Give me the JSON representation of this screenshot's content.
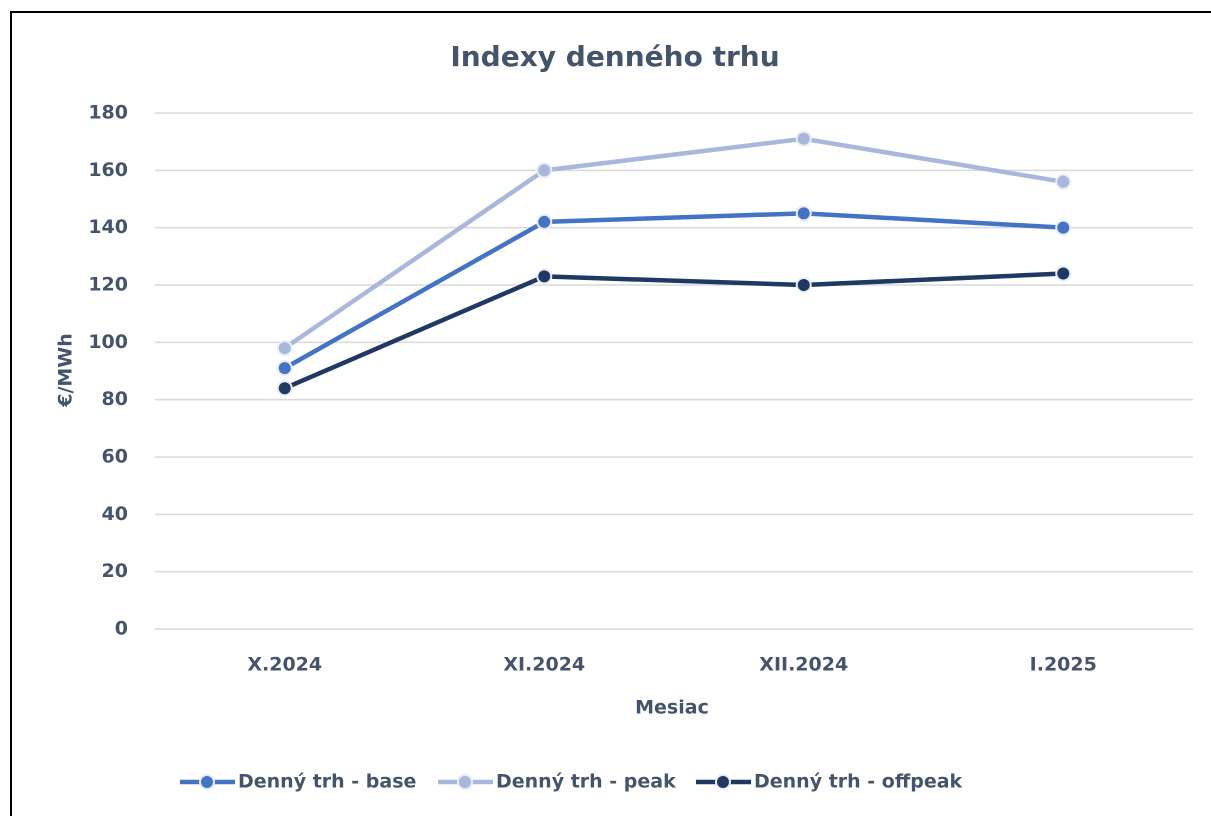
{
  "chart_data": {
    "type": "line",
    "title": "Indexy denného trhu",
    "x_label": "Mesiac",
    "y_label": "€/MWh",
    "categories": [
      "X.2024",
      "XI.2024",
      "XII.2024",
      "I.2025"
    ],
    "series": [
      {
        "name": "Denný trh - base",
        "color": "#4472c4",
        "values": [
          91,
          142,
          145,
          140
        ]
      },
      {
        "name": "Denný trh - peak",
        "color": "#a9b7dd",
        "values": [
          98,
          160,
          171,
          156
        ]
      },
      {
        "name": "Denný trh - offpeak",
        "color": "#1f3864",
        "values": [
          84,
          123,
          120,
          124
        ]
      }
    ],
    "ylim": [
      0,
      180
    ],
    "yticks": [
      0,
      20,
      40,
      60,
      80,
      100,
      120,
      140,
      160,
      180
    ],
    "grid": true,
    "legend": "bottom"
  }
}
